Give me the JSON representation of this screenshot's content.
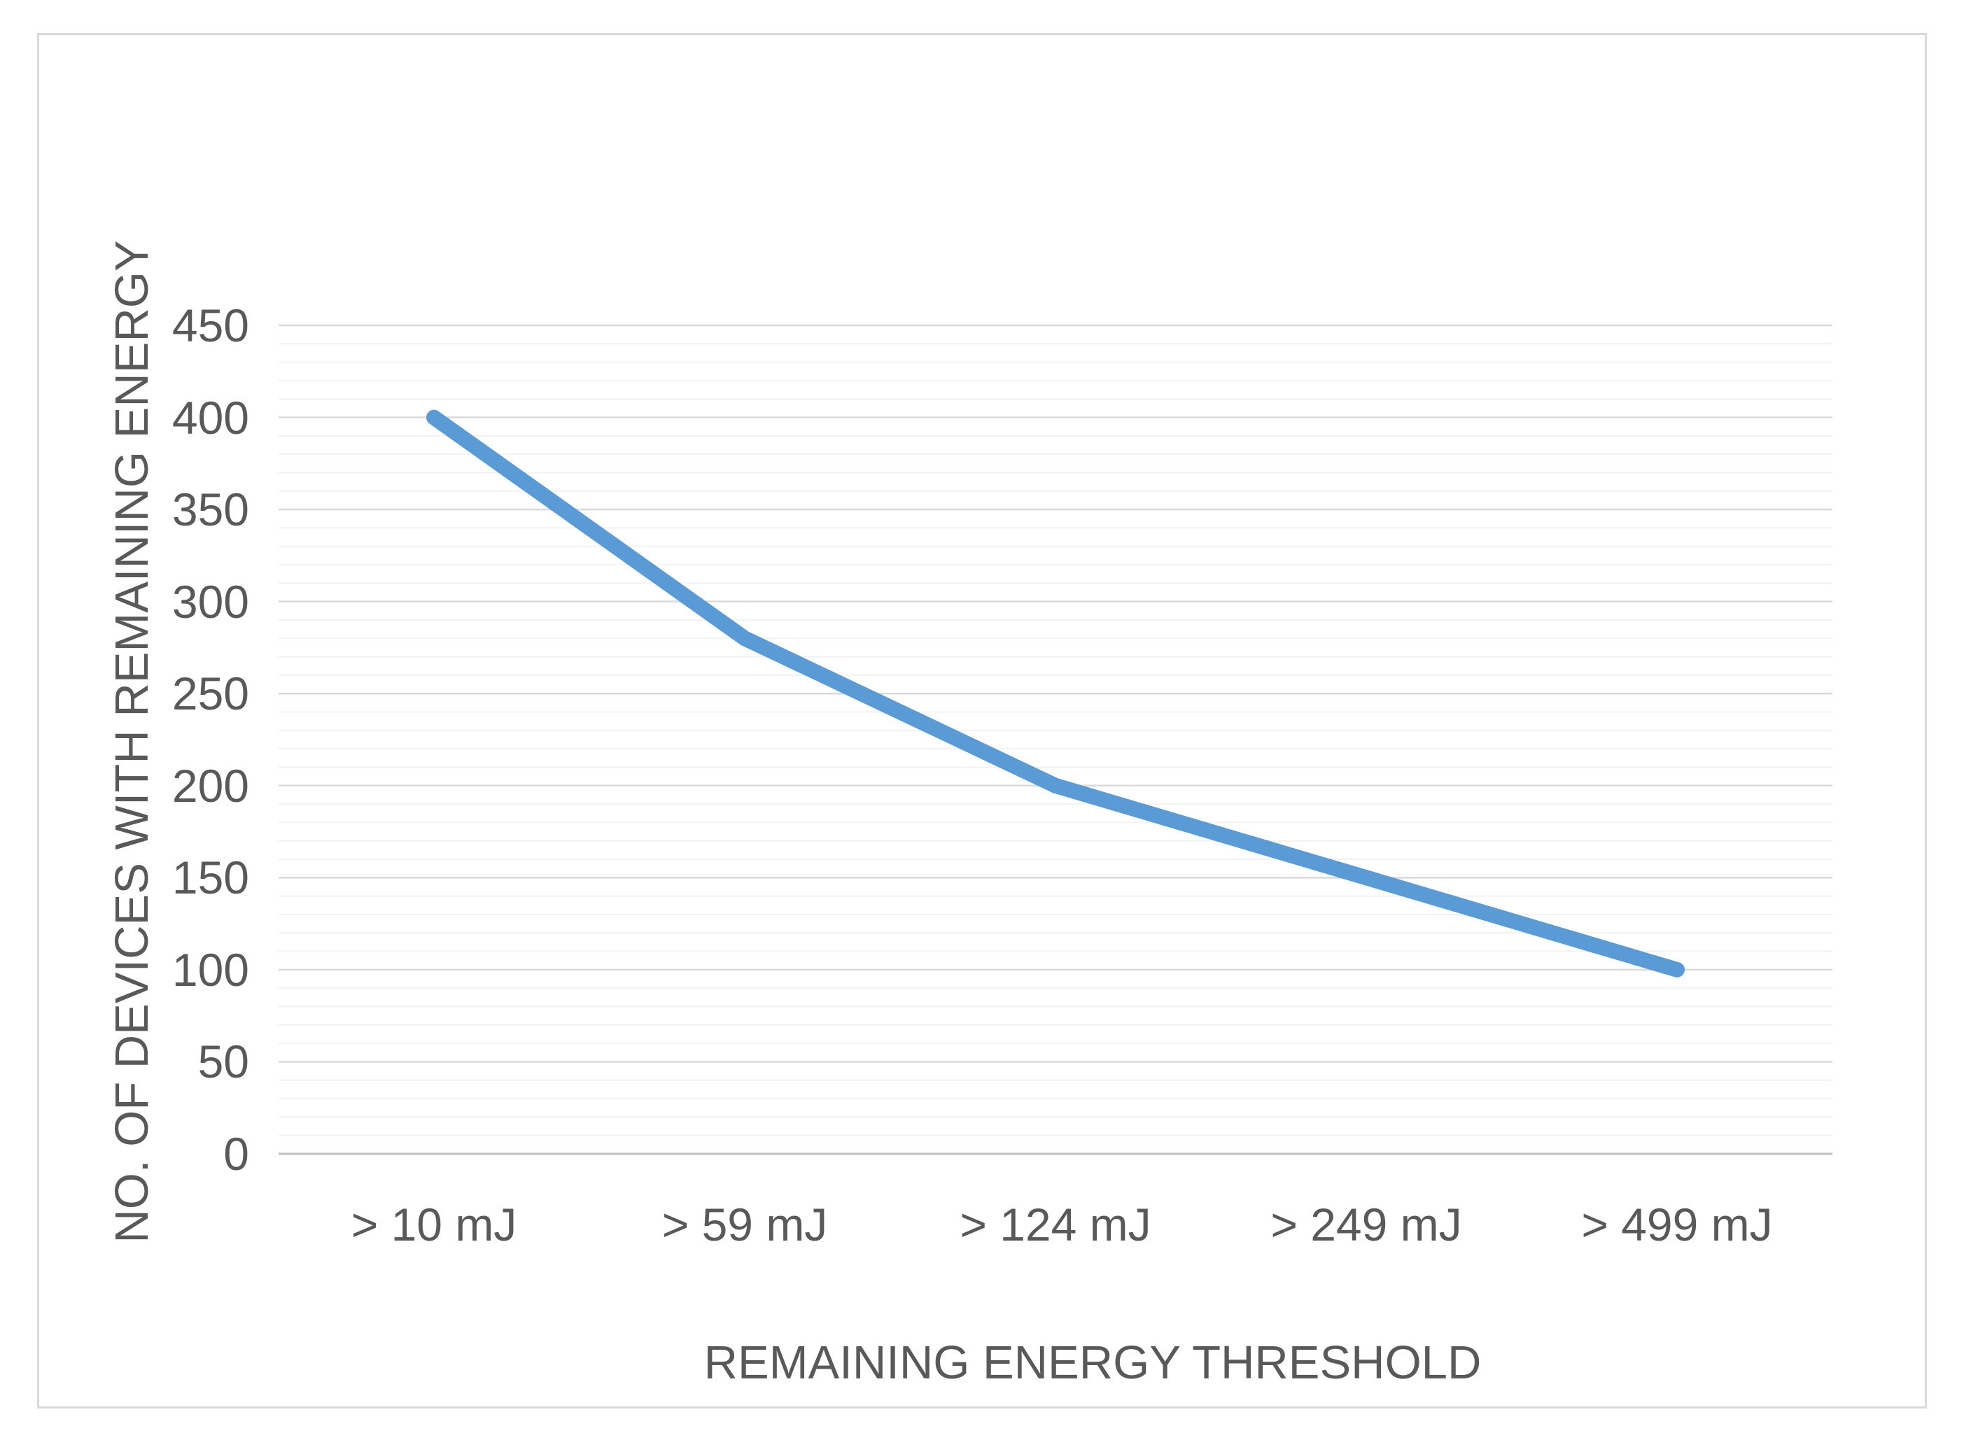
{
  "chart_data": {
    "type": "line",
    "title": "",
    "categories": [
      "> 10 mJ",
      "> 59 mJ",
      "> 124 mJ",
      "> 249 mJ",
      "> 499 mJ"
    ],
    "values": [
      400,
      280,
      200,
      150,
      100
    ],
    "xlabel": "REMAINING ENERGY THRESHOLD",
    "ylabel": "NO. OF DEVICES WITH REMAINING ENERGY",
    "ylim": [
      0,
      450
    ],
    "y_tick_labels": [
      "0",
      "50",
      "100",
      "150",
      "200",
      "250",
      "300",
      "350",
      "400",
      "450"
    ],
    "y_major_unit": 50,
    "y_minor_unit": 10,
    "grid": "horizontal major and minor gridlines",
    "legend_position": "none",
    "line_color": "#5B9BD5",
    "colors": {
      "text": "#595959",
      "major_grid": "#D9D9D9",
      "minor_grid": "#F2F2F2",
      "axis_line": "#BFBFBF",
      "chart_border": "#D9D9D9",
      "background": "#FFFFFF"
    }
  }
}
